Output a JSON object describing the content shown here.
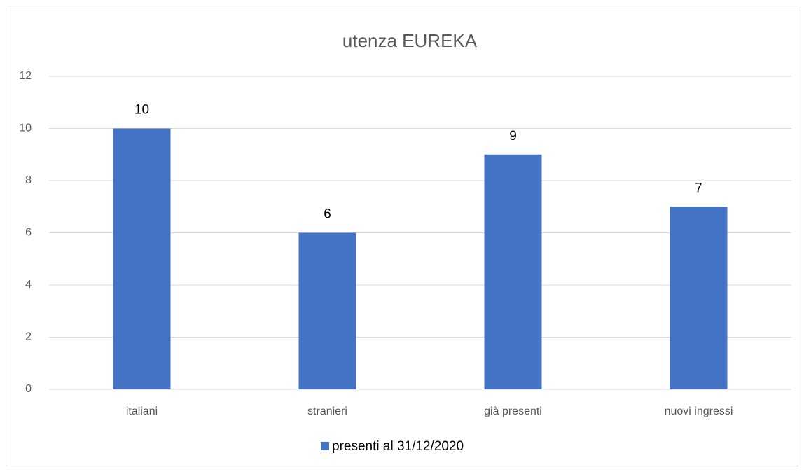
{
  "chart_data": {
    "type": "bar",
    "title": "utenza EUREKA",
    "categories": [
      "italiani",
      "stranieri",
      "già presenti",
      "nuovi ingressi"
    ],
    "series": [
      {
        "name": "presenti al 31/12/2020",
        "color": "#4472c4",
        "values": [
          10,
          6,
          9,
          7
        ]
      }
    ],
    "ylim": [
      0,
      12
    ],
    "yticks": [
      0,
      2,
      4,
      6,
      8,
      10,
      12
    ],
    "grid": true,
    "legend": "bottom",
    "data_labels": true
  }
}
